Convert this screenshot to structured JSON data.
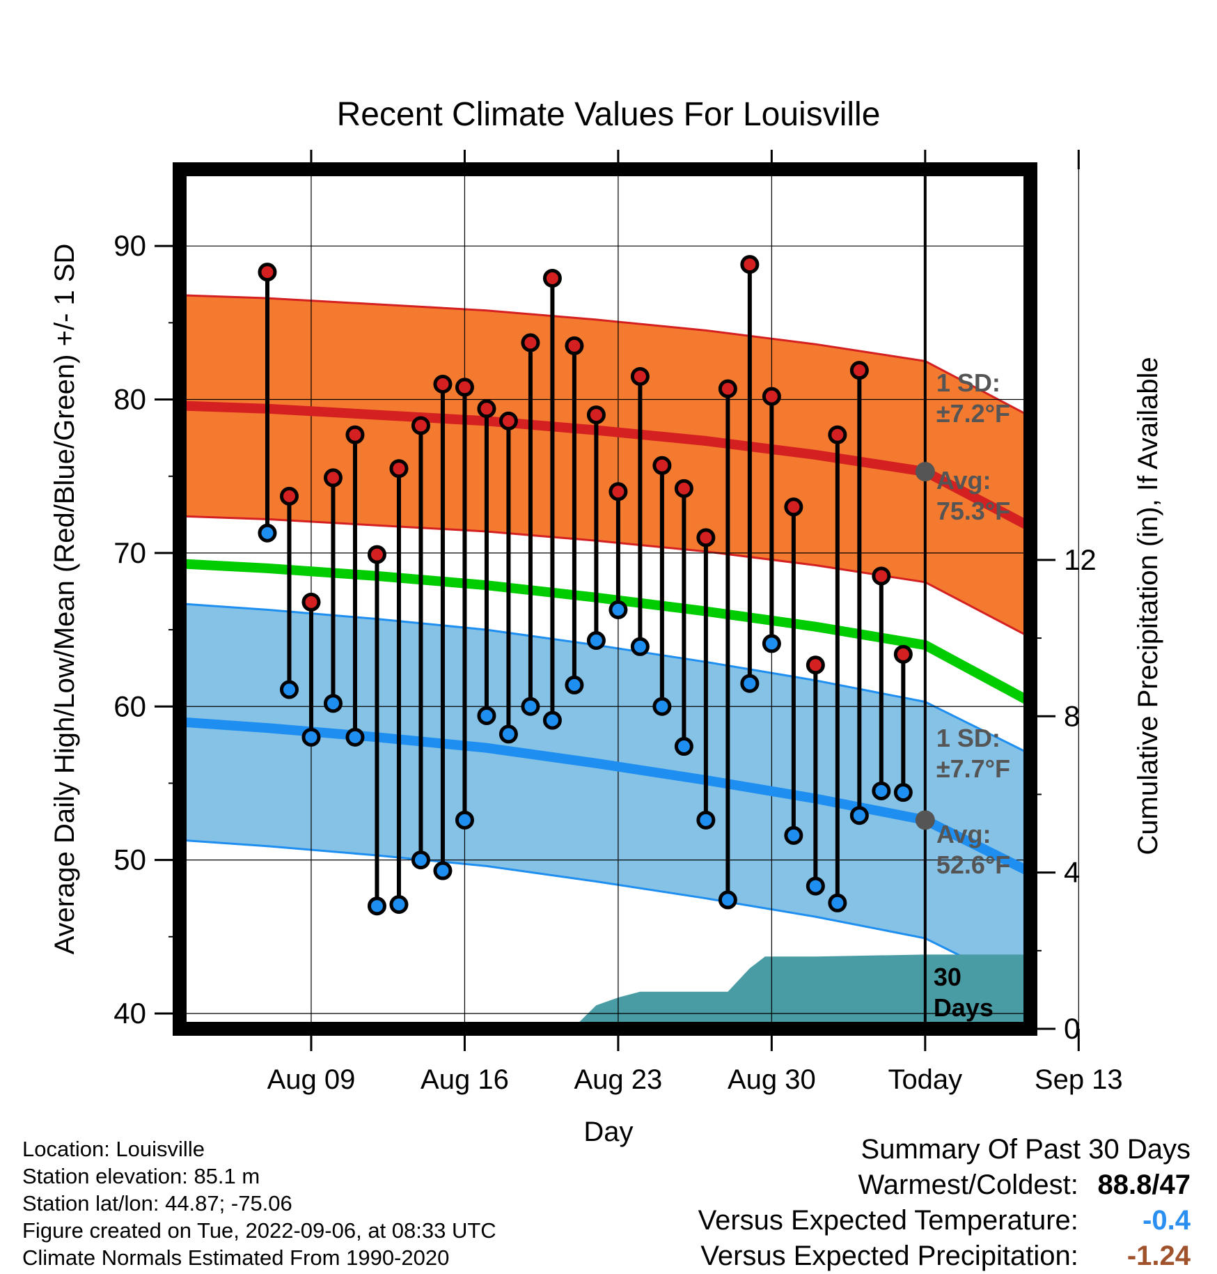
{
  "chart_data": {
    "type": "line",
    "title": "Recent Climate Values For Louisville",
    "xlabel": "Day",
    "ylabel": "Average Daily High/Low/Mean (Red/Blue/Green) +/- 1 SD",
    "y2label": "Cumulative Precipitation (in), If Available",
    "ylim": [
      39,
      95
    ],
    "y2lim": [
      0,
      22
    ],
    "y_ticks": [
      "90",
      "80",
      "70",
      "60",
      "50",
      "40"
    ],
    "y2_ticks": [
      "12",
      "8",
      "4",
      "0"
    ],
    "x_ticks": [
      "Aug 09",
      "Aug 16",
      "Aug 23",
      "Aug 30",
      "Today",
      "Sep 13"
    ],
    "day_range": [
      -34,
      4.8
    ],
    "grid": true,
    "today_day": 0,
    "colors": {
      "high": "#d42020",
      "high_band": "#f47a30",
      "low": "#1e8ff0",
      "low_band": "#86c2e6",
      "mean": "#00cc00",
      "precip": "#4a9ca4",
      "today_marker": "#555555",
      "anno": "#555555"
    },
    "normals": {
      "day": [
        -34,
        -30,
        -25,
        -20,
        -15,
        -10,
        -5,
        0,
        4.8
      ],
      "high": [
        79.6,
        79.4,
        79.0,
        78.6,
        78.0,
        77.3,
        76.4,
        75.3,
        71.7
      ],
      "high_sd": 7.2,
      "mean": [
        69.3,
        69.0,
        68.5,
        67.9,
        67.1,
        66.2,
        65.2,
        64.0,
        60.3
      ],
      "low": [
        59.0,
        58.6,
        58.0,
        57.3,
        56.3,
        55.2,
        54.0,
        52.6,
        49.2
      ],
      "low_sd": 7.7
    },
    "observations": {
      "day": [
        -30,
        -29,
        -28,
        -27,
        -26,
        -25,
        -24,
        -23,
        -22,
        -21,
        -20,
        -19,
        -18,
        -17,
        -16,
        -15,
        -14,
        -13,
        -12,
        -11,
        -10,
        -9,
        -8,
        -7,
        -6,
        -5,
        -4,
        -3,
        -2,
        -1
      ],
      "high": [
        88.3,
        73.7,
        66.8,
        74.9,
        77.7,
        69.9,
        75.5,
        78.3,
        81.0,
        80.8,
        79.4,
        78.6,
        83.7,
        87.9,
        83.5,
        79.0,
        74.0,
        81.5,
        75.7,
        74.2,
        71.0,
        80.7,
        88.8,
        80.2,
        73.0,
        62.7,
        77.7,
        81.9,
        68.5,
        63.4
      ],
      "low": [
        71.3,
        61.1,
        58.0,
        60.2,
        58.0,
        47.0,
        47.1,
        50.0,
        49.3,
        52.6,
        59.4,
        58.2,
        60.0,
        59.1,
        61.4,
        64.3,
        66.3,
        63.9,
        60.0,
        57.4,
        52.6,
        47.4,
        61.5,
        64.1,
        51.6,
        48.3,
        47.2,
        52.9,
        54.5,
        54.4
      ]
    },
    "precip": {
      "day": [
        -34,
        -30,
        -28,
        -26,
        -20,
        -17,
        -16,
        -15,
        -14,
        -13,
        -11,
        -9,
        -8,
        -7.3,
        -7,
        -5,
        0,
        4.8
      ],
      "value": [
        0,
        0,
        0.05,
        0.05,
        0.05,
        0.05,
        0.05,
        0.6,
        0.8,
        0.95,
        0.95,
        0.95,
        1.55,
        1.85,
        1.85,
        1.85,
        1.9,
        1.9
      ]
    },
    "annotations": {
      "high_sd": "1 SD:",
      "high_sd_value": "±7.2°F",
      "high_avg": "Avg:",
      "high_avg_value": "75.3°F",
      "low_sd": "1 SD:",
      "low_sd_value": "±7.7°F",
      "low_avg": "Avg:",
      "low_avg_value": "52.6°F",
      "days_num": "30",
      "days_word": "Days"
    }
  },
  "info": {
    "location": "Location: Louisville",
    "elevation": "Station elevation: 85.1 m",
    "latlon": "Station lat/lon: 44.87; -75.06",
    "created": "Figure created on Tue, 2022-09-06, at 08:33 UTC",
    "normals": "Climate Normals Estimated From 1990-2020"
  },
  "summary": {
    "title": "Summary Of Past 30 Days",
    "warmest_label": "Warmest/Coldest:",
    "warmest_value": "88.8/47",
    "temp_label": "Versus Expected Temperature:",
    "temp_value": "-0.4",
    "temp_color": "#2a8ff0",
    "precip_label": "Versus Expected Precipitation:",
    "precip_value": "-1.24",
    "precip_color": "#a0522d"
  }
}
